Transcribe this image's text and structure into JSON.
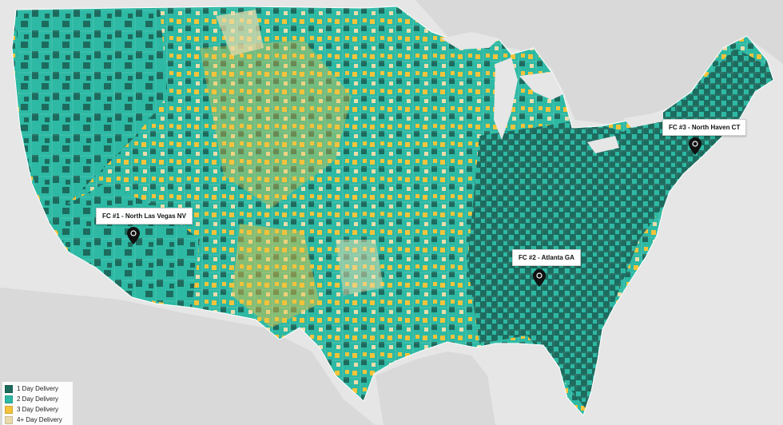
{
  "colors": {
    "one_day": "#1d6b5e",
    "two_day": "#2db9a4",
    "three_day": "#f5c33b",
    "four_plus_day": "#ecdcab",
    "water": "#e6e6e6",
    "land_outside": "#d9d9d9",
    "pin": "#111111"
  },
  "fulfillment_centers": [
    {
      "id": "fc1",
      "label": "FC #1 - North Las Vegas NV"
    },
    {
      "id": "fc2",
      "label": "FC #2 - Atlanta GA"
    },
    {
      "id": "fc3",
      "label": "FC #3 - North Haven CT"
    }
  ],
  "legend": {
    "items": [
      {
        "label": "1 Day Delivery",
        "color": "#1d6b5e"
      },
      {
        "label": "2 Day Delivery",
        "color": "#2db9a4"
      },
      {
        "label": "3 Day Delivery",
        "color": "#f5c33b"
      },
      {
        "label": "4+ Day Delivery",
        "color": "#ecdcab"
      }
    ]
  }
}
